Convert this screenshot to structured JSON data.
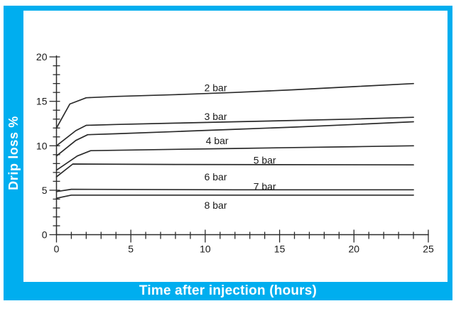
{
  "figure": {
    "accent_color": "#00AEEF",
    "line_color": "#2b2b2b",
    "text_color": "#1a1a1a"
  },
  "chart_data": {
    "type": "line",
    "title": "",
    "xlabel": "Time after injection (hours)",
    "ylabel": "Drip loss %",
    "xlim": [
      0,
      25
    ],
    "ylim": [
      0,
      20
    ],
    "x_major_ticks": [
      0,
      5,
      10,
      15,
      20,
      25
    ],
    "x_minor_step": 1,
    "y_major_ticks": [
      0,
      5,
      10,
      15,
      20
    ],
    "y_minor_step": 1,
    "grid": false,
    "legend": "inline-labels",
    "series": [
      {
        "name": "2 bar",
        "points": [
          [
            0,
            12.0
          ],
          [
            0.9,
            14.7
          ],
          [
            2,
            15.4
          ],
          [
            4,
            15.55
          ],
          [
            8,
            15.75
          ],
          [
            12,
            16.0
          ],
          [
            16,
            16.3
          ],
          [
            20,
            16.65
          ],
          [
            24,
            17.0
          ]
        ],
        "label_pos": [
          10.7,
          16.55
        ]
      },
      {
        "name": "3 bar",
        "points": [
          [
            0,
            10.0
          ],
          [
            1.3,
            11.7
          ],
          [
            2,
            12.3
          ],
          [
            4,
            12.4
          ],
          [
            8,
            12.55
          ],
          [
            12,
            12.7
          ],
          [
            16,
            12.85
          ],
          [
            20,
            13.0
          ],
          [
            24,
            13.2
          ]
        ],
        "label_pos": [
          10.7,
          13.3
        ]
      },
      {
        "name": "4 bar",
        "points": [
          [
            0,
            8.85
          ],
          [
            1.3,
            10.6
          ],
          [
            2.1,
            11.25
          ],
          [
            4,
            11.35
          ],
          [
            8,
            11.6
          ],
          [
            12,
            11.85
          ],
          [
            16,
            12.1
          ],
          [
            20,
            12.4
          ],
          [
            24,
            12.7
          ]
        ],
        "label_pos": [
          10.8,
          10.6
        ]
      },
      {
        "name": "5 bar",
        "points": [
          [
            0,
            7.25
          ],
          [
            1.4,
            8.85
          ],
          [
            2.3,
            9.45
          ],
          [
            8,
            9.6
          ],
          [
            12,
            9.7
          ],
          [
            16,
            9.8
          ],
          [
            20,
            9.9
          ],
          [
            24,
            10.0
          ]
        ],
        "label_pos": [
          14.0,
          8.4
        ]
      },
      {
        "name": "6 bar",
        "points": [
          [
            0,
            6.5
          ],
          [
            1.1,
            7.95
          ],
          [
            8,
            7.9
          ],
          [
            24,
            7.85
          ]
        ],
        "label_pos": [
          10.7,
          6.5
        ]
      },
      {
        "name": "7 bar",
        "points": [
          [
            0,
            4.85
          ],
          [
            1,
            5.1
          ],
          [
            12,
            5.05
          ],
          [
            24,
            5.05
          ]
        ],
        "label_pos": [
          14.0,
          5.45
        ]
      },
      {
        "name": "8 bar",
        "points": [
          [
            0,
            4.1
          ],
          [
            1,
            4.45
          ],
          [
            12,
            4.45
          ],
          [
            24,
            4.45
          ]
        ],
        "label_pos": [
          10.7,
          3.3
        ]
      }
    ]
  }
}
